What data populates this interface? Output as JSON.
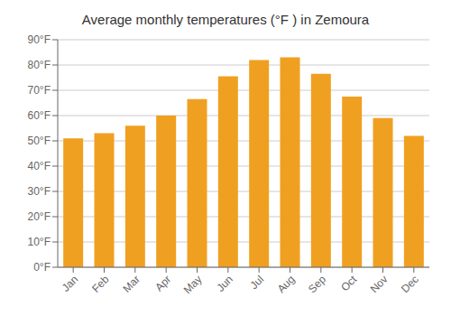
{
  "chart_data": {
    "type": "bar",
    "title": "Average monthly temperatures (°F ) in Zemoura",
    "categories": [
      "Jan",
      "Feb",
      "Mar",
      "Apr",
      "May",
      "Jun",
      "Jul",
      "Aug",
      "Sep",
      "Oct",
      "Nov",
      "Dec"
    ],
    "values": [
      51,
      53,
      56,
      60,
      66.5,
      75.5,
      82,
      83,
      76.5,
      67.5,
      59,
      52
    ],
    "color": "#F0A020",
    "ylim": [
      0,
      90
    ],
    "yticks": [
      {
        "value": 0,
        "label": "0°F"
      },
      {
        "value": 10,
        "label": "10°F"
      },
      {
        "value": 20,
        "label": "20°F"
      },
      {
        "value": 30,
        "label": "30°F"
      },
      {
        "value": 40,
        "label": "40°F"
      },
      {
        "value": 50,
        "label": "50°F"
      },
      {
        "value": 60,
        "label": "60°F"
      },
      {
        "value": 70,
        "label": "70°F"
      },
      {
        "value": 80,
        "label": "80°F"
      },
      {
        "value": 90,
        "label": "90°F"
      }
    ],
    "grid": true
  }
}
